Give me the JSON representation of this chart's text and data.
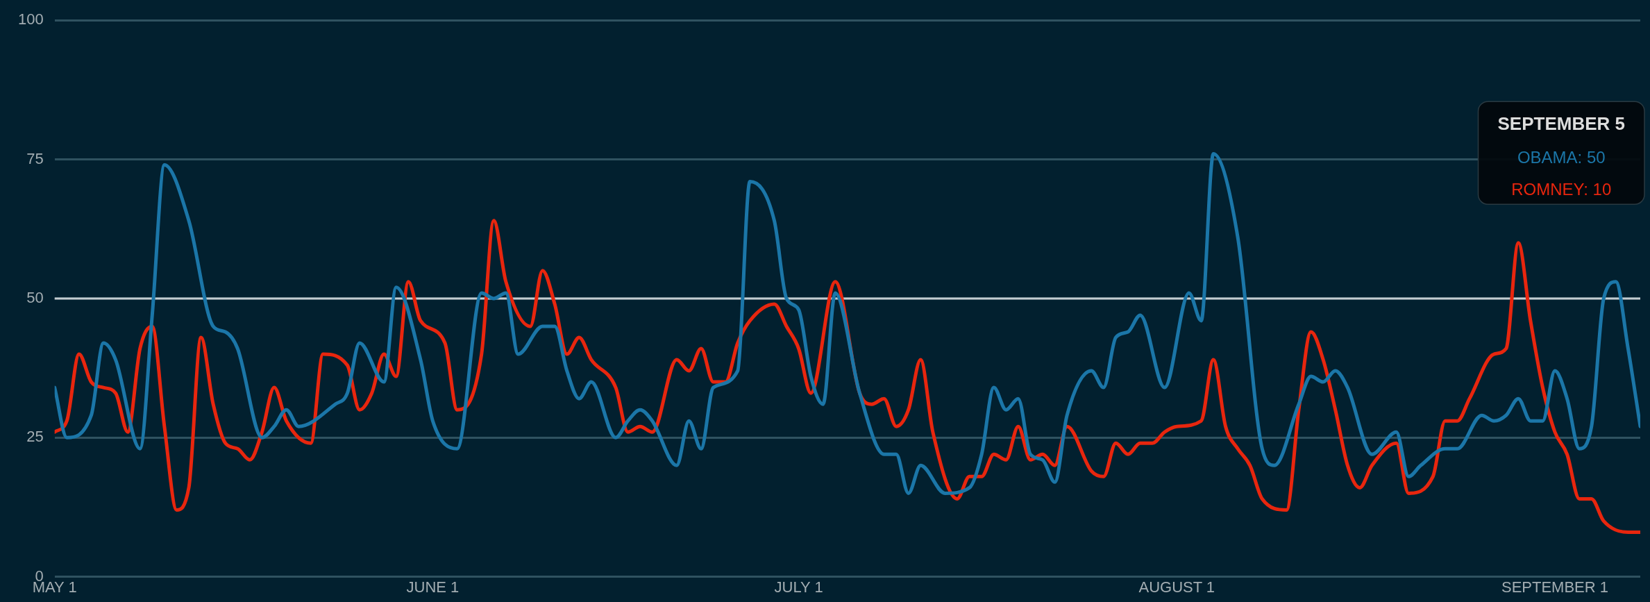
{
  "chart_data": {
    "type": "line",
    "xlim": [
      "--05-01",
      "--09-08"
    ],
    "xticks": [
      {
        "value": "--05-01",
        "label": "MAY 1"
      },
      {
        "value": "--06-01",
        "label": "JUNE 1"
      },
      {
        "value": "--07-01",
        "label": "JULY 1"
      },
      {
        "value": "--08-01",
        "label": "AUGUST 1"
      },
      {
        "value": "--09-01",
        "label": "SEPTEMBER 1"
      }
    ],
    "ylim": [
      0,
      100
    ],
    "yticks": [
      0,
      25,
      50,
      75,
      100
    ],
    "grid": "y",
    "legend": false,
    "marker": "none",
    "line_style": "solid",
    "ref_lines": [
      {
        "axis": "y",
        "value": 50,
        "color": "#c4ccd0"
      }
    ],
    "annotations": [
      "SEPTEMBER 5",
      "OBAMA: 50",
      "ROMNEY: 10"
    ],
    "series": [
      {
        "color": "#1b76a8",
        "x": [
          "--05-01",
          "--05-02",
          "--05-04",
          "--05-05",
          "--05-06",
          "--05-08",
          "--05-09",
          "--05-10",
          "--05-12",
          "--05-14",
          "--05-15",
          "--05-16",
          "--05-18",
          "--05-19",
          "--05-20",
          "--05-21",
          "--05-24",
          "--05-25",
          "--05-26",
          "--05-28",
          "--05-29",
          "--05-31",
          "--06-01",
          "--06-03",
          "--06-05",
          "--06-06",
          "--06-07",
          "--06-08",
          "--06-10",
          "--06-11",
          "--06-12",
          "--06-13",
          "--06-14",
          "--06-16",
          "--06-17",
          "--06-18",
          "--06-19",
          "--06-21",
          "--06-22",
          "--06-23",
          "--06-24",
          "--06-26",
          "--06-27",
          "--06-29",
          "--06-30",
          "--07-01",
          "--07-02",
          "--07-03",
          "--07-04",
          "--07-06",
          "--07-08",
          "--07-09",
          "--07-10",
          "--07-11",
          "--07-13",
          "--07-15",
          "--07-16",
          "--07-17",
          "--07-18",
          "--07-19",
          "--07-20",
          "--07-21",
          "--07-22",
          "--07-23",
          "--07-25",
          "--07-26",
          "--07-27",
          "--07-28",
          "--07-29",
          "--07-31",
          "--08-02",
          "--08-03",
          "--08-04",
          "--08-06",
          "--08-08",
          "--08-09",
          "--08-11",
          "--08-12",
          "--08-13",
          "--08-14",
          "--08-15",
          "--08-17",
          "--08-19",
          "--08-20",
          "--08-21",
          "--08-23",
          "--08-24",
          "--08-26",
          "--08-27",
          "--08-28",
          "--08-29",
          "--08-30",
          "--08-31",
          "--09-01",
          "--09-02",
          "--09-03",
          "--09-04",
          "--09-05",
          "--09-06",
          "--09-07",
          "--09-08"
        ],
        "values": [
          34,
          25,
          29,
          42,
          39,
          23,
          47,
          74,
          64,
          45,
          44,
          41,
          25,
          27,
          30,
          27,
          31,
          33,
          42,
          35,
          52,
          39,
          28,
          23,
          51,
          50,
          51,
          40,
          45,
          45,
          37,
          32,
          35,
          25,
          28,
          30,
          28,
          20,
          28,
          23,
          34,
          37,
          71,
          64,
          50,
          48,
          36,
          31,
          51,
          33,
          22,
          22,
          15,
          20,
          15,
          16,
          22,
          34,
          30,
          32,
          22,
          21,
          17,
          29,
          37,
          34,
          43,
          44,
          47,
          34,
          51,
          46,
          76,
          61,
          23,
          20,
          31,
          36,
          35,
          37,
          34,
          22,
          26,
          18,
          20,
          23,
          23,
          29,
          28,
          29,
          32,
          28,
          28,
          37,
          32,
          23,
          27,
          50,
          53,
          41,
          27
        ]
      },
      {
        "color": "#e8260e",
        "x": [
          "--05-01",
          "--05-02",
          "--05-03",
          "--05-04",
          "--05-05",
          "--05-06",
          "--05-07",
          "--05-08",
          "--05-09",
          "--05-10",
          "--05-11",
          "--05-12",
          "--05-13",
          "--05-14",
          "--05-15",
          "--05-16",
          "--05-17",
          "--05-18",
          "--05-19",
          "--05-20",
          "--05-22",
          "--05-23",
          "--05-25",
          "--05-26",
          "--05-27",
          "--05-28",
          "--05-29",
          "--05-30",
          "--05-31",
          "--06-02",
          "--06-03",
          "--06-05",
          "--06-06",
          "--06-07",
          "--06-09",
          "--06-10",
          "--06-11",
          "--06-12",
          "--06-13",
          "--06-14",
          "--06-16",
          "--06-17",
          "--06-18",
          "--06-19",
          "--06-21",
          "--06-22",
          "--06-23",
          "--06-24",
          "--06-25",
          "--06-26",
          "--06-27",
          "--06-29",
          "--06-30",
          "--07-01",
          "--07-02",
          "--07-04",
          "--07-06",
          "--07-07",
          "--07-08",
          "--07-09",
          "--07-10",
          "--07-11",
          "--07-12",
          "--07-14",
          "--07-15",
          "--07-16",
          "--07-17",
          "--07-18",
          "--07-19",
          "--07-20",
          "--07-21",
          "--07-22",
          "--07-23",
          "--07-25",
          "--07-26",
          "--07-27",
          "--07-28",
          "--07-29",
          "--07-30",
          "--07-31",
          "--08-01",
          "--08-03",
          "--08-04",
          "--08-05",
          "--08-06",
          "--08-07",
          "--08-08",
          "--08-10",
          "--08-11",
          "--08-12",
          "--08-13",
          "--08-14",
          "--08-15",
          "--08-16",
          "--08-17",
          "--08-19",
          "--08-20",
          "--08-22",
          "--08-23",
          "--08-24",
          "--08-25",
          "--08-27",
          "--08-28",
          "--08-29",
          "--08-30",
          "--08-31",
          "--09-01",
          "--09-02",
          "--09-03",
          "--09-04",
          "--09-05",
          "--09-07",
          "--09-08"
        ],
        "values": [
          26,
          28,
          40,
          35,
          34,
          33,
          26,
          41,
          45,
          27,
          12,
          16,
          43,
          31,
          24,
          23,
          21,
          26,
          34,
          28,
          24,
          40,
          38,
          30,
          33,
          40,
          36,
          53,
          46,
          42,
          30,
          40,
          64,
          53,
          45,
          55,
          49,
          40,
          43,
          39,
          34,
          26,
          27,
          26,
          39,
          37,
          41,
          35,
          35,
          42,
          46,
          49,
          45,
          41,
          33,
          53,
          33,
          31,
          32,
          27,
          30,
          39,
          26,
          14,
          18,
          18,
          22,
          21,
          27,
          21,
          22,
          20,
          27,
          19,
          18,
          24,
          22,
          24,
          24,
          26,
          27,
          28,
          39,
          27,
          23,
          20,
          14,
          12,
          30,
          44,
          39,
          30,
          20,
          16,
          20,
          24,
          15,
          18,
          28,
          28,
          32,
          40,
          41,
          60,
          46,
          34,
          26,
          22,
          14,
          14,
          10,
          8,
          8
        ]
      }
    ]
  }
}
